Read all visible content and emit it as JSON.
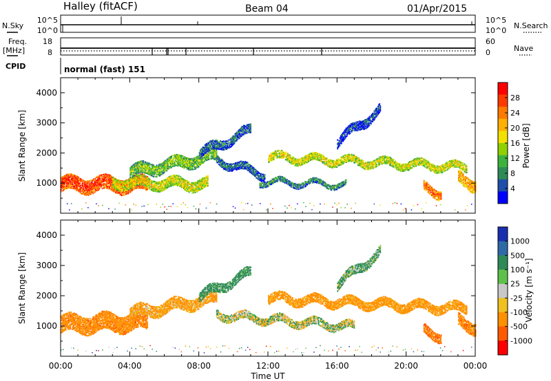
{
  "header": {
    "station": "Halley (fitACF)",
    "beam": "Beam 04",
    "date": "01/Apr/2015"
  },
  "side_labels": {
    "nsky": "N.Sky",
    "nsky_ticks": [
      "10^5",
      "10^0"
    ],
    "freq_line1": "Freq.",
    "freq_line2": "[MHz]",
    "freq_ticks": [
      "18",
      "8"
    ],
    "cpid": "CPID",
    "nsearch": "N.Search",
    "nsearch_ticks": [
      "10^5",
      "10^0"
    ],
    "nave": "Nave",
    "nave_ticks": [
      "60",
      "0"
    ],
    "cpid_value": "normal (fast) 151"
  },
  "chart_data": [
    {
      "type": "heatmap",
      "name": "power",
      "ylabel": "Slant Range [km]",
      "yticks": [
        1000,
        2000,
        3000,
        4000
      ],
      "ylim": [
        0,
        4500
      ],
      "xlim_hours": [
        0,
        24
      ],
      "colorbar": {
        "label": "Power [dB]",
        "ticks": [
          "28",
          "24",
          "20",
          "16",
          "12",
          "8",
          "4"
        ],
        "colors": [
          "#ff0000",
          "#ff3a00",
          "#ff7a00",
          "#ffb000",
          "#f2e000",
          "#8fd000",
          "#3db33d",
          "#2e8b57",
          "#1f4faa",
          "#0000ff"
        ]
      },
      "echo_bands": [
        {
          "t0": 0.0,
          "t1": 5.0,
          "r_start": 1000,
          "r_end": 1000,
          "width": 500,
          "level": 28
        },
        {
          "t0": 3.0,
          "t1": 8.5,
          "r_start": 1050,
          "r_end": 1000,
          "width": 350,
          "level": 18
        },
        {
          "t0": 4.0,
          "t1": 9.0,
          "r_start": 1400,
          "r_end": 1950,
          "width": 400,
          "level": 14
        },
        {
          "t0": 8.0,
          "t1": 11.0,
          "r_start": 2000,
          "r_end": 2800,
          "width": 300,
          "level": 8
        },
        {
          "t0": 9.0,
          "t1": 11.8,
          "r_start": 1800,
          "r_end": 1300,
          "width": 250,
          "level": 8
        },
        {
          "t0": 11.5,
          "t1": 16.5,
          "r_start": 1100,
          "r_end": 1000,
          "width": 200,
          "level": 10
        },
        {
          "t0": 12.0,
          "t1": 23.5,
          "r_start": 1900,
          "r_end": 1550,
          "width": 250,
          "level": 18
        },
        {
          "t0": 16.0,
          "t1": 18.5,
          "r_start": 2400,
          "r_end": 3500,
          "width": 300,
          "level": 6
        },
        {
          "t0": 21.0,
          "t1": 22.0,
          "r_start": 900,
          "r_end": 700,
          "width": 300,
          "level": 26
        },
        {
          "t0": 23.0,
          "t1": 24.0,
          "r_start": 1200,
          "r_end": 1000,
          "width": 400,
          "level": 22
        }
      ]
    },
    {
      "type": "heatmap",
      "name": "velocity",
      "ylabel": "Slant Range [km]",
      "xlabel": "Time UT",
      "yticks": [
        1000,
        2000,
        3000,
        4000
      ],
      "ylim": [
        0,
        4500
      ],
      "xlim_hours": [
        0,
        24
      ],
      "xticks": [
        "00:00",
        "04:00",
        "08:00",
        "12:00",
        "16:00",
        "20:00",
        "00:00"
      ],
      "colorbar": {
        "label": "Velocity [m s⁻¹]",
        "ticks": [
          "1000",
          "500",
          "100",
          "25",
          "-25",
          "-100",
          "-500",
          "-1000"
        ],
        "colors": [
          "#1a2fb0",
          "#2f6aa8",
          "#2e8b57",
          "#5dc14a",
          "#c8c8c8",
          "#f0c020",
          "#ff9000",
          "#ff5a00",
          "#ff0000"
        ]
      },
      "echo_bands": [
        {
          "t0": 0.0,
          "t1": 5.0,
          "r_start": 1100,
          "r_end": 1200,
          "width": 600,
          "level": -300
        },
        {
          "t0": 4.0,
          "t1": 9.0,
          "r_start": 1450,
          "r_end": 1950,
          "width": 400,
          "level": -150
        },
        {
          "t0": 8.0,
          "t1": 11.0,
          "r_start": 2000,
          "r_end": 2800,
          "width": 300,
          "level": 150
        },
        {
          "t0": 9.0,
          "t1": 17.0,
          "r_start": 1400,
          "r_end": 1000,
          "width": 250,
          "level": 0
        },
        {
          "t0": 12.0,
          "t1": 23.5,
          "r_start": 1950,
          "r_end": 1600,
          "width": 300,
          "level": -200
        },
        {
          "t0": 16.0,
          "t1": 18.5,
          "r_start": 2400,
          "r_end": 3500,
          "width": 300,
          "level": 100
        },
        {
          "t0": 21.0,
          "t1": 22.0,
          "r_start": 900,
          "r_end": 700,
          "width": 300,
          "level": -400
        },
        {
          "t0": 23.0,
          "t1": 24.0,
          "r_start": 1200,
          "r_end": 1000,
          "width": 400,
          "level": -300
        }
      ]
    }
  ]
}
